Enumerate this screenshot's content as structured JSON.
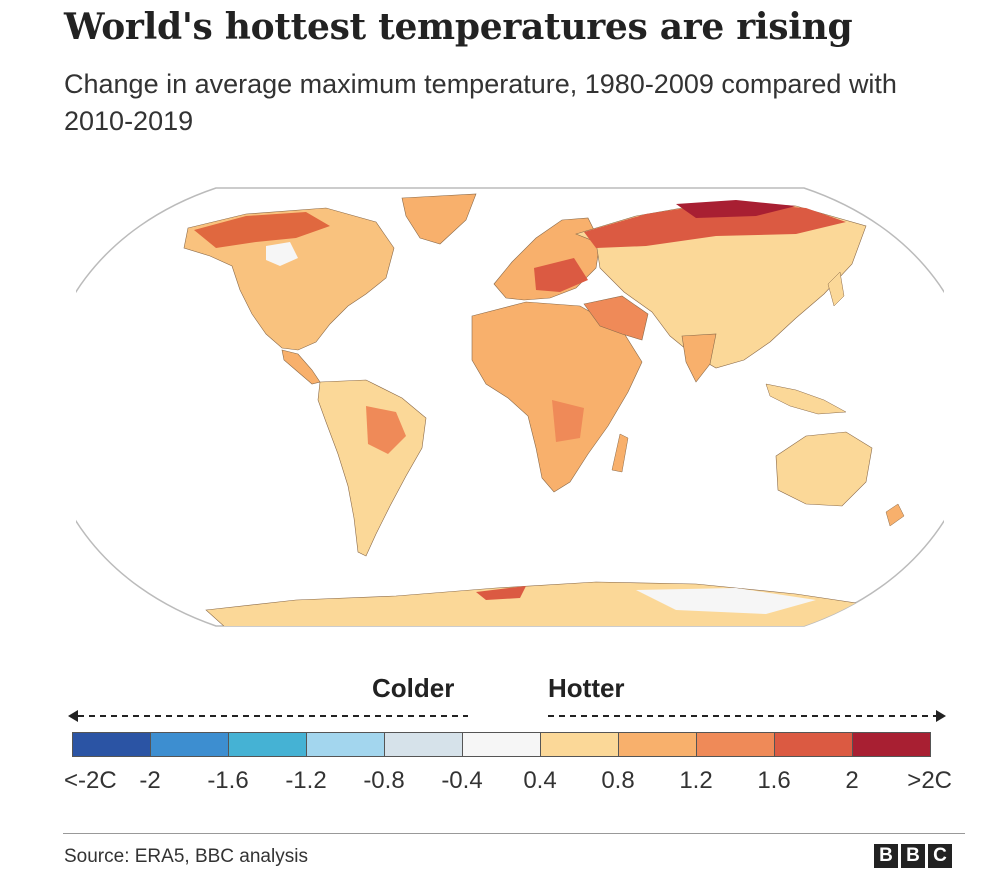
{
  "title": "World's hottest temperatures are rising",
  "subtitle": "Change in average maximum temperature, 1980-2009 compared with 2010-2019",
  "map": {
    "projection": "robinson",
    "ocean_color": "#ffffff",
    "outline_color": "#bbbbbb"
  },
  "legend": {
    "colder_label": "Colder",
    "hotter_label": "Hotter",
    "colors": [
      "#2b54a4",
      "#3d8ed0",
      "#45b2d4",
      "#a3d6ee",
      "#d6e2ea",
      "#f6f6f6",
      "#fbd898",
      "#f8b06c",
      "#ef8a58",
      "#db5a42",
      "#a81f32"
    ],
    "ticks": [
      "<-2C",
      "-2",
      "-1.6",
      "-1.2",
      "-0.8",
      "-0.4",
      "0.4",
      "0.8",
      "1.2",
      "1.6",
      "2",
      ">2C"
    ]
  },
  "source": "Source: ERA5, BBC analysis",
  "logo": [
    "B",
    "B",
    "C"
  ]
}
